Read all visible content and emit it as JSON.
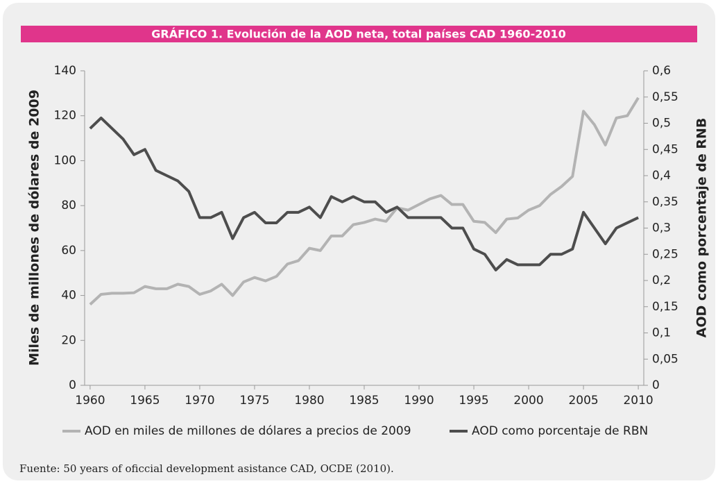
{
  "chart_data": {
    "type": "line",
    "title": "GRÁFICO 1.    Evolución de la AOD neta, total países CAD 1960-2010",
    "y_label": "Miles de millones de dólares de 2009",
    "y2_label": "AOD como porcentaje de RNB",
    "source": "Fuente: 50 years of oficcial development asistance CAD, OCDE (2010).",
    "x": [
      1960,
      1961,
      1962,
      1963,
      1964,
      1965,
      1966,
      1967,
      1968,
      1969,
      1970,
      1971,
      1972,
      1973,
      1974,
      1975,
      1976,
      1977,
      1978,
      1979,
      1980,
      1981,
      1982,
      1983,
      1984,
      1985,
      1986,
      1987,
      1988,
      1989,
      1990,
      1991,
      1992,
      1993,
      1994,
      1995,
      1996,
      1997,
      1998,
      1999,
      2000,
      2001,
      2002,
      2003,
      2004,
      2005,
      2006,
      2007,
      2008,
      2009,
      2010
    ],
    "xlim": [
      1959.5,
      2010.5
    ],
    "xticks": [
      1960,
      1965,
      1970,
      1975,
      1980,
      1985,
      1990,
      1995,
      2000,
      2005,
      2010
    ],
    "ylim": [
      0,
      140
    ],
    "yticks": [
      0,
      20,
      40,
      60,
      80,
      100,
      120,
      140
    ],
    "y2lim": [
      0,
      0.6
    ],
    "y2ticks": [
      0,
      {
        "value": 0.05,
        "label": "0,05"
      },
      {
        "value": 0.1,
        "label": "0,1"
      },
      {
        "value": 0.15,
        "label": "0,15"
      },
      {
        "value": 0.2,
        "label": "0,2"
      },
      {
        "value": 0.25,
        "label": "0,25"
      },
      {
        "value": 0.3,
        "label": "0,3"
      },
      {
        "value": 0.35,
        "label": "0,35"
      },
      {
        "value": 0.4,
        "label": "0,4"
      },
      {
        "value": 0.45,
        "label": "0,45"
      },
      {
        "value": 0.5,
        "label": "0,5"
      },
      {
        "value": 0.55,
        "label": "0,55"
      },
      {
        "value": 0.6,
        "label": "0,6"
      }
    ],
    "grid": false,
    "legend": "bottom",
    "series": [
      {
        "name": "AOD en miles de millones de dólares a precios de 2009",
        "color": "#b3b3b3",
        "values": [
          36,
          40.5,
          41,
          41,
          41.2,
          44,
          43,
          43,
          45,
          44,
          40.5,
          42,
          45,
          40,
          46,
          48,
          46.5,
          48.5,
          54,
          55.5,
          61,
          60,
          66.5,
          66.5,
          71.5,
          72.5,
          74,
          73,
          79,
          78,
          80.5,
          83,
          84.5,
          80.5,
          80.5,
          73,
          72.5,
          68,
          74,
          74.5,
          78,
          80,
          85,
          88.5,
          93,
          122,
          116,
          107,
          119,
          120,
          128
        ]
      },
      {
        "name": "AOD como porcentaje de RBN",
        "color": "#4d4d4d",
        "axis": "y2",
        "values": [
          0.49,
          0.51,
          0.49,
          0.47,
          0.44,
          0.45,
          0.41,
          0.4,
          0.39,
          0.37,
          0.32,
          0.32,
          0.33,
          0.28,
          0.32,
          0.33,
          0.31,
          0.31,
          0.33,
          0.33,
          0.34,
          0.32,
          0.36,
          0.35,
          0.36,
          0.35,
          0.35,
          0.33,
          0.34,
          0.32,
          0.32,
          0.32,
          0.32,
          0.3,
          0.3,
          0.26,
          0.25,
          0.22,
          0.24,
          0.23,
          0.23,
          0.23,
          0.25,
          0.25,
          0.26,
          0.33,
          0.3,
          0.27,
          0.3,
          0.31,
          0.32
        ]
      }
    ]
  }
}
